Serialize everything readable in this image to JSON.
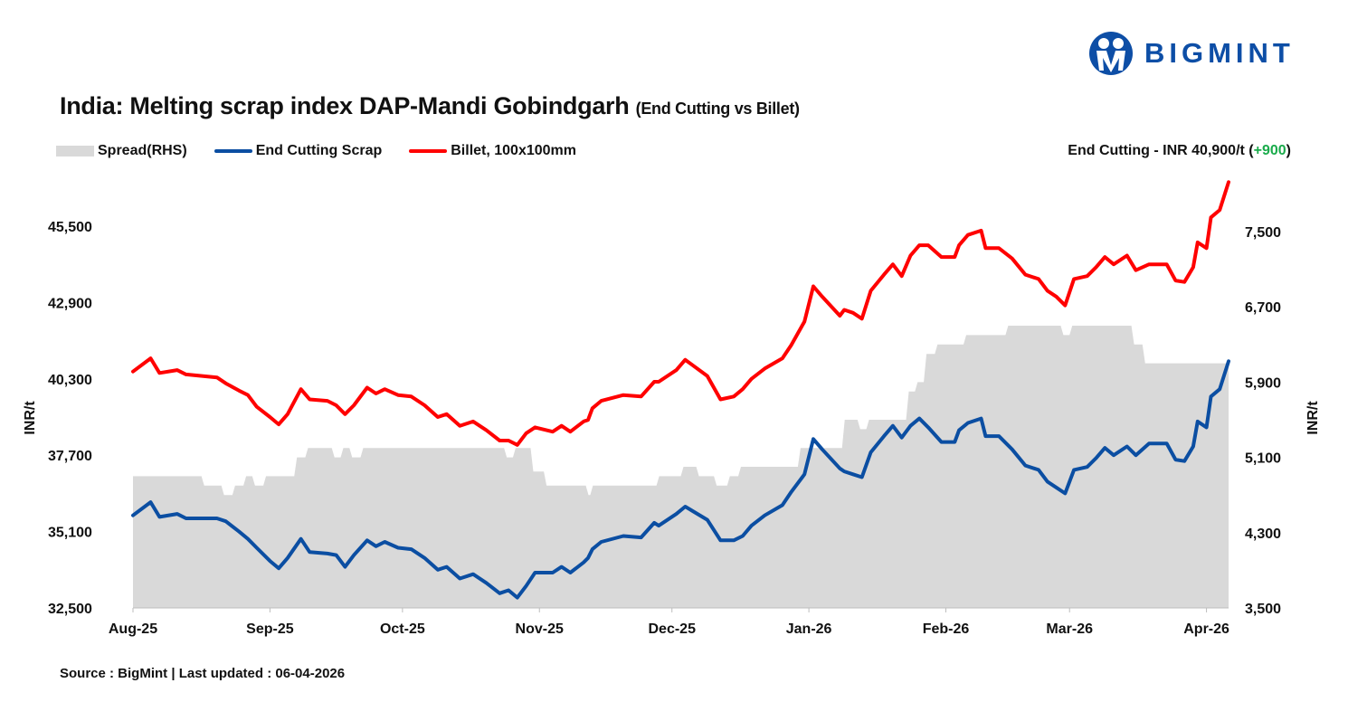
{
  "logo": {
    "text": "BIGMINT",
    "color": "#0d4ea6"
  },
  "header": {
    "title": "India: Melting scrap index DAP-Mandi Gobindgarh",
    "subtitle": "(End Cutting vs Billet)",
    "latest_label": "End Cutting - INR 40,900/t (",
    "latest_change": "+900",
    "latest_close": ")"
  },
  "footer": {
    "source": "Source : BigMint | Last updated : 06-04-2026"
  },
  "chart_data": {
    "type": "line",
    "title": "India: Melting scrap index DAP-Mandi Gobindgarh (End Cutting vs Billet)",
    "ylabel": "INR/t",
    "y2label": "INR/t",
    "ylim": [
      32500,
      45500
    ],
    "y2lim": [
      3500,
      7500
    ],
    "yticks": [
      "32,500",
      "35,100",
      "37,700",
      "40,300",
      "42,900",
      "45,500"
    ],
    "y2ticks": [
      "3,500",
      "4,300",
      "5,100",
      "5,900",
      "6,700",
      "7,500"
    ],
    "xticks": [
      {
        "label": "Aug-25",
        "date": "2025-08-01"
      },
      {
        "label": "Sep-25",
        "date": "2025-09-01"
      },
      {
        "label": "Oct-25",
        "date": "2025-10-01"
      },
      {
        "label": "Nov-25",
        "date": "2025-11-01"
      },
      {
        "label": "Dec-25",
        "date": "2025-12-01"
      },
      {
        "label": "Jan-26",
        "date": "2026-01-01"
      },
      {
        "label": "Feb-26",
        "date": "2026-02-01"
      },
      {
        "label": "Mar-26",
        "date": "2026-03-01"
      },
      {
        "label": "Apr-26",
        "date": "2026-04-01"
      }
    ],
    "grid": false,
    "legend_position": "top-left",
    "series": [
      {
        "name": "Spread(RHS)",
        "key": "spread",
        "type": "area",
        "axis": "right",
        "color": "#d9d9d9"
      },
      {
        "name": "End Cutting Scrap",
        "key": "scrap",
        "type": "line",
        "axis": "left",
        "color": "#0b4ea2"
      },
      {
        "name": "Billet, 100x100mm",
        "key": "billet",
        "type": "line",
        "axis": "left",
        "color": "#ff0000"
      }
    ],
    "columns": [
      "date",
      "scrap",
      "spread",
      "billet"
    ],
    "rows": [
      [
        "2025-08-01",
        35650,
        4900,
        40550
      ],
      [
        "2025-08-05",
        36100,
        4900,
        41000
      ],
      [
        "2025-08-07",
        35600,
        4900,
        40500
      ],
      [
        "2025-08-11",
        35700,
        4900,
        40600
      ],
      [
        "2025-08-13",
        35550,
        4900,
        40450
      ],
      [
        "2025-08-20",
        35550,
        4800,
        40350
      ],
      [
        "2025-08-22",
        35450,
        4700,
        40150
      ],
      [
        "2025-08-25",
        35100,
        4800,
        39900
      ],
      [
        "2025-08-27",
        34850,
        4900,
        39750
      ],
      [
        "2025-08-29",
        34550,
        4800,
        39350
      ],
      [
        "2025-09-01",
        34100,
        4900,
        39000
      ],
      [
        "2025-09-03",
        33850,
        4900,
        38750
      ],
      [
        "2025-09-05",
        34200,
        4900,
        39100
      ],
      [
        "2025-09-08",
        34850,
        5100,
        39950
      ],
      [
        "2025-09-10",
        34400,
        5200,
        39600
      ],
      [
        "2025-09-14",
        34350,
        5200,
        39550
      ],
      [
        "2025-09-16",
        34300,
        5100,
        39400
      ],
      [
        "2025-09-18",
        33900,
        5200,
        39100
      ],
      [
        "2025-09-20",
        34300,
        5100,
        39400
      ],
      [
        "2025-09-23",
        34800,
        5200,
        40000
      ],
      [
        "2025-09-25",
        34600,
        5200,
        39800
      ],
      [
        "2025-09-27",
        34750,
        5200,
        39950
      ],
      [
        "2025-09-30",
        34550,
        5200,
        39750
      ],
      [
        "2025-10-03",
        34500,
        5200,
        39700
      ],
      [
        "2025-10-06",
        34200,
        5200,
        39400
      ],
      [
        "2025-10-09",
        33800,
        5200,
        39000
      ],
      [
        "2025-10-11",
        33900,
        5200,
        39100
      ],
      [
        "2025-10-14",
        33500,
        5200,
        38700
      ],
      [
        "2025-10-17",
        33650,
        5200,
        38850
      ],
      [
        "2025-10-20",
        33350,
        5200,
        38550
      ],
      [
        "2025-10-23",
        33000,
        5200,
        38200
      ],
      [
        "2025-10-25",
        33100,
        5100,
        38200
      ],
      [
        "2025-10-27",
        32850,
        5200,
        38050
      ],
      [
        "2025-10-29",
        33250,
        5200,
        38450
      ],
      [
        "2025-10-31",
        33700,
        4950,
        38650
      ],
      [
        "2025-11-04",
        33700,
        4800,
        38500
      ],
      [
        "2025-11-06",
        33900,
        4800,
        38700
      ],
      [
        "2025-11-08",
        33700,
        4800,
        38500
      ],
      [
        "2025-11-11",
        34050,
        4800,
        38850
      ],
      [
        "2025-11-12",
        34200,
        4700,
        38900
      ],
      [
        "2025-11-13",
        34500,
        4800,
        39300
      ],
      [
        "2025-11-15",
        34750,
        4800,
        39550
      ],
      [
        "2025-11-20",
        34950,
        4800,
        39750
      ],
      [
        "2025-11-24",
        34900,
        4800,
        39700
      ],
      [
        "2025-11-27",
        35400,
        4800,
        40200
      ],
      [
        "2025-11-28",
        35300,
        4900,
        40200
      ],
      [
        "2025-12-02",
        35700,
        4900,
        40600
      ],
      [
        "2025-12-04",
        35950,
        5000,
        40950
      ],
      [
        "2025-12-09",
        35500,
        4900,
        40400
      ],
      [
        "2025-12-12",
        34800,
        4800,
        39600
      ],
      [
        "2025-12-15",
        34800,
        4900,
        39700
      ],
      [
        "2025-12-17",
        34950,
        5000,
        39950
      ],
      [
        "2025-12-19",
        35300,
        5000,
        40300
      ],
      [
        "2025-12-22",
        35650,
        5000,
        40650
      ],
      [
        "2025-12-26",
        36000,
        5000,
        41000
      ],
      [
        "2025-12-28",
        36450,
        5000,
        41450
      ],
      [
        "2025-12-31",
        37050,
        5200,
        42250
      ],
      [
        "2026-01-02",
        38250,
        5200,
        43450
      ],
      [
        "2026-01-04",
        37900,
        5200,
        43100
      ],
      [
        "2026-01-08",
        37250,
        5200,
        42450
      ],
      [
        "2026-01-09",
        37150,
        5500,
        42650
      ],
      [
        "2026-01-11",
        37050,
        5500,
        42550
      ],
      [
        "2026-01-13",
        36950,
        5400,
        42350
      ],
      [
        "2026-01-15",
        37800,
        5500,
        43300
      ],
      [
        "2026-01-18",
        38350,
        5500,
        43850
      ],
      [
        "2026-01-20",
        38700,
        5500,
        44200
      ],
      [
        "2026-01-22",
        38300,
        5500,
        43800
      ],
      [
        "2026-01-24",
        38700,
        5800,
        44500
      ],
      [
        "2026-01-26",
        38950,
        5900,
        44850
      ],
      [
        "2026-01-28",
        38650,
        6200,
        44850
      ],
      [
        "2026-01-31",
        38150,
        6300,
        44450
      ],
      [
        "2026-02-03",
        38150,
        6300,
        44450
      ],
      [
        "2026-02-04",
        38550,
        6300,
        44850
      ],
      [
        "2026-02-06",
        38800,
        6400,
        45200
      ],
      [
        "2026-02-09",
        38950,
        6400,
        45350
      ],
      [
        "2026-02-10",
        38350,
        6400,
        44750
      ],
      [
        "2026-02-13",
        38350,
        6400,
        44750
      ],
      [
        "2026-02-16",
        37900,
        6500,
        44400
      ],
      [
        "2026-02-19",
        37350,
        6500,
        43850
      ],
      [
        "2026-02-22",
        37200,
        6500,
        43700
      ],
      [
        "2026-02-24",
        36800,
        6500,
        43300
      ],
      [
        "2026-02-26",
        36600,
        6500,
        43100
      ],
      [
        "2026-02-28",
        36400,
        6400,
        42800
      ],
      [
        "2026-03-02",
        37200,
        6500,
        43700
      ],
      [
        "2026-03-05",
        37300,
        6500,
        43800
      ],
      [
        "2026-03-07",
        37600,
        6500,
        44100
      ],
      [
        "2026-03-09",
        37950,
        6500,
        44450
      ],
      [
        "2026-03-11",
        37700,
        6500,
        44200
      ],
      [
        "2026-03-14",
        38000,
        6500,
        44500
      ],
      [
        "2026-03-16",
        37700,
        6300,
        44000
      ],
      [
        "2026-03-19",
        38100,
        6100,
        44200
      ],
      [
        "2026-03-23",
        38100,
        6100,
        44200
      ],
      [
        "2026-03-25",
        37550,
        6100,
        43650
      ],
      [
        "2026-03-27",
        37500,
        6100,
        43600
      ],
      [
        "2026-03-29",
        38000,
        6100,
        44100
      ],
      [
        "2026-03-30",
        38850,
        6100,
        44950
      ],
      [
        "2026-04-01",
        38650,
        6100,
        44750
      ],
      [
        "2026-04-02",
        39700,
        6100,
        45800
      ],
      [
        "2026-04-04",
        39950,
        6100,
        46050
      ],
      [
        "2026-04-06",
        40900,
        6100,
        47000
      ]
    ]
  }
}
